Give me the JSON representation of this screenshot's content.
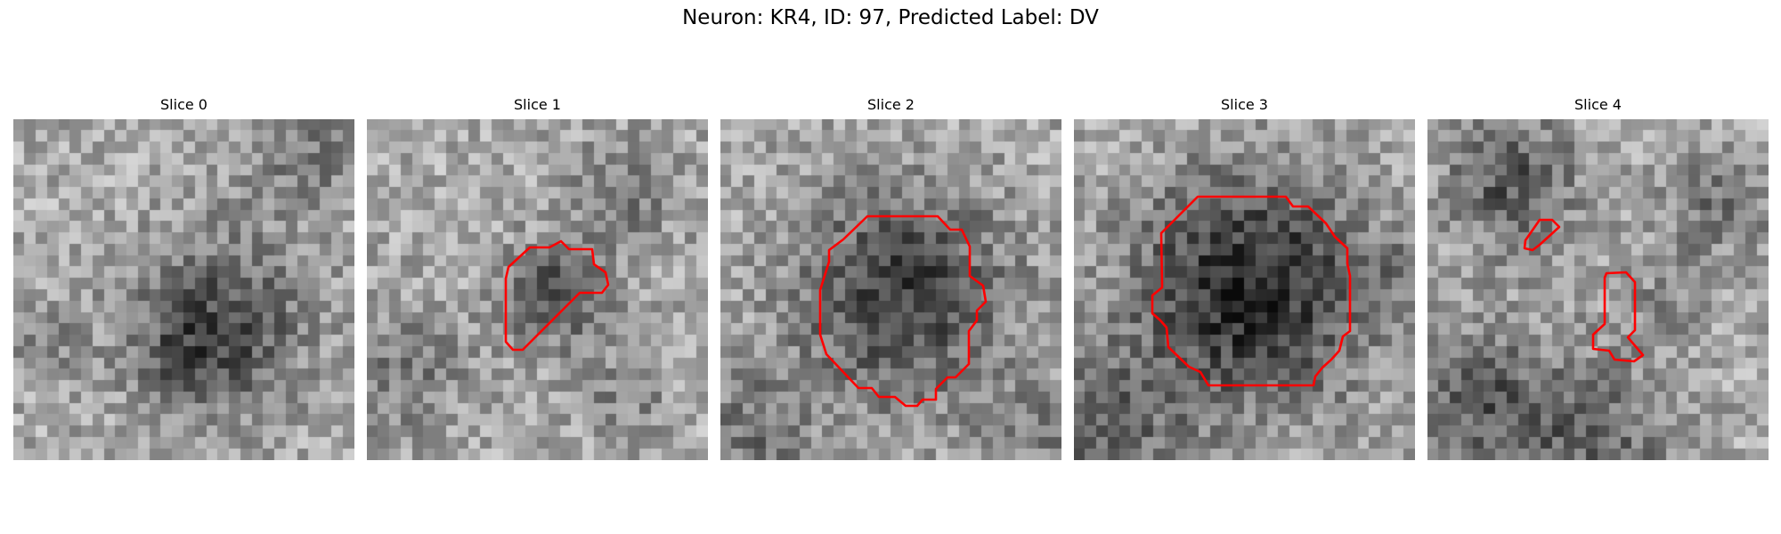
{
  "figure": {
    "title": "Neuron: KR4, ID: 97, Predicted Label: DV",
    "contour_color": "#ff0000"
  },
  "slices": [
    {
      "title": "Slice 0",
      "has_contour": false
    },
    {
      "title": "Slice 1",
      "has_contour": true
    },
    {
      "title": "Slice 2",
      "has_contour": true
    },
    {
      "title": "Slice 3",
      "has_contour": true
    },
    {
      "title": "Slice 4",
      "has_contour": true
    }
  ]
}
